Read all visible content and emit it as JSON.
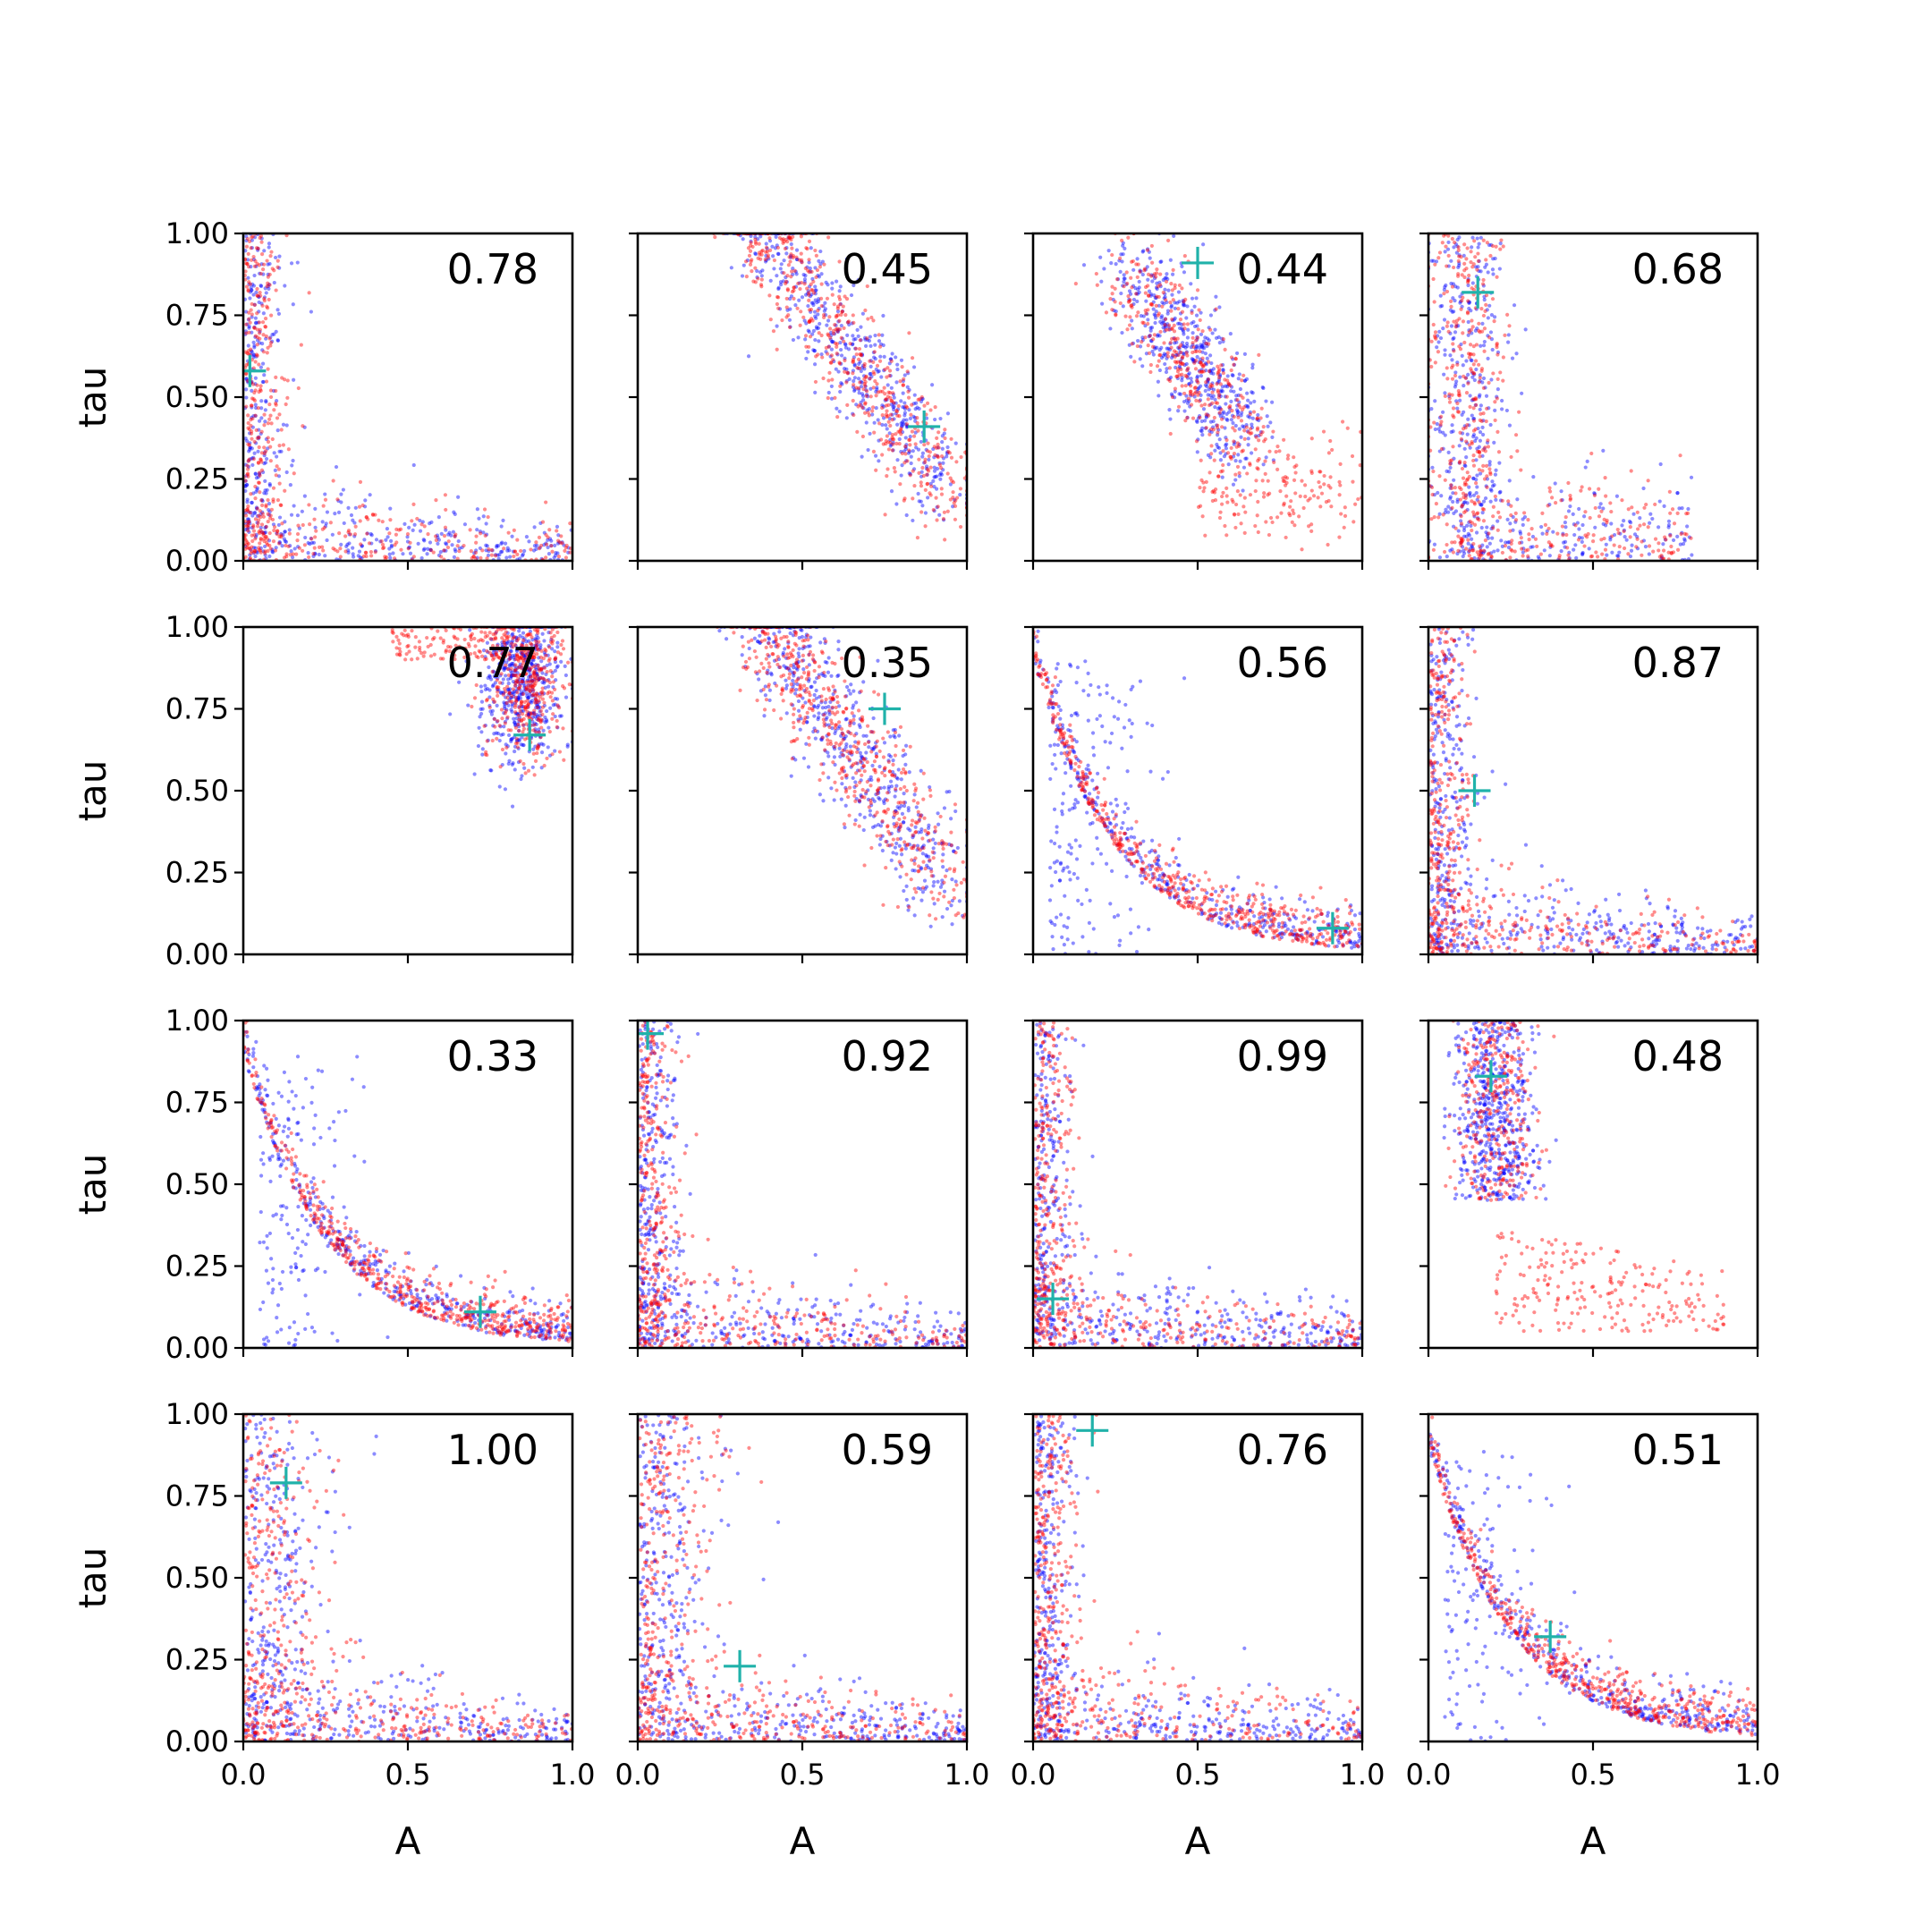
{
  "chart_data": {
    "type": "scatter",
    "layout": {
      "rows": 4,
      "cols": 4,
      "sharex": true,
      "sharey": true
    },
    "xlabel": "A",
    "ylabel": "tau",
    "xlim": [
      0.0,
      1.0
    ],
    "ylim": [
      0.0,
      1.0
    ],
    "xticks": [
      "0.0",
      "0.5",
      "1.0"
    ],
    "yticks": [
      "0.00",
      "0.25",
      "0.50",
      "0.75",
      "1.00"
    ],
    "grid": false,
    "series_colors": {
      "red": "#ff0000",
      "blue": "#0000ff",
      "marker": "#20b2aa"
    },
    "panels": [
      {
        "annotation": "0.78",
        "pattern": "L-shape",
        "marker": [
          0.02,
          0.58
        ]
      },
      {
        "annotation": "0.45",
        "pattern": "diagonal-band",
        "marker": [
          0.87,
          0.41
        ]
      },
      {
        "annotation": "0.44",
        "pattern": "diagonal-with-red-tail",
        "marker": [
          0.5,
          0.91
        ]
      },
      {
        "annotation": "0.68",
        "pattern": "vertical-band",
        "marker": [
          0.15,
          0.82
        ]
      },
      {
        "annotation": "0.77",
        "pattern": "top-right-cluster",
        "marker": [
          0.87,
          0.67
        ]
      },
      {
        "annotation": "0.35",
        "pattern": "diagonal-band",
        "marker": [
          0.75,
          0.75
        ]
      },
      {
        "annotation": "0.56",
        "pattern": "curved-decay",
        "marker": [
          0.91,
          0.08
        ]
      },
      {
        "annotation": "0.87",
        "pattern": "L-shape",
        "marker": [
          0.14,
          0.5
        ]
      },
      {
        "annotation": "0.33",
        "pattern": "curved-decay",
        "marker": [
          0.72,
          0.11
        ]
      },
      {
        "annotation": "0.92",
        "pattern": "L-shape",
        "marker": [
          0.03,
          0.96
        ]
      },
      {
        "annotation": "0.99",
        "pattern": "L-shape",
        "marker": [
          0.06,
          0.15
        ]
      },
      {
        "annotation": "0.48",
        "pattern": "vertical-with-red-tail",
        "marker": [
          0.19,
          0.83
        ]
      },
      {
        "annotation": "1.00",
        "pattern": "L-shape-wide",
        "marker": [
          0.13,
          0.79
        ]
      },
      {
        "annotation": "0.59",
        "pattern": "L-shape-wide",
        "marker": [
          0.31,
          0.23
        ]
      },
      {
        "annotation": "0.76",
        "pattern": "L-shape",
        "marker": [
          0.18,
          0.95
        ]
      },
      {
        "annotation": "0.51",
        "pattern": "curved-decay",
        "marker": [
          0.37,
          0.32
        ]
      }
    ]
  }
}
